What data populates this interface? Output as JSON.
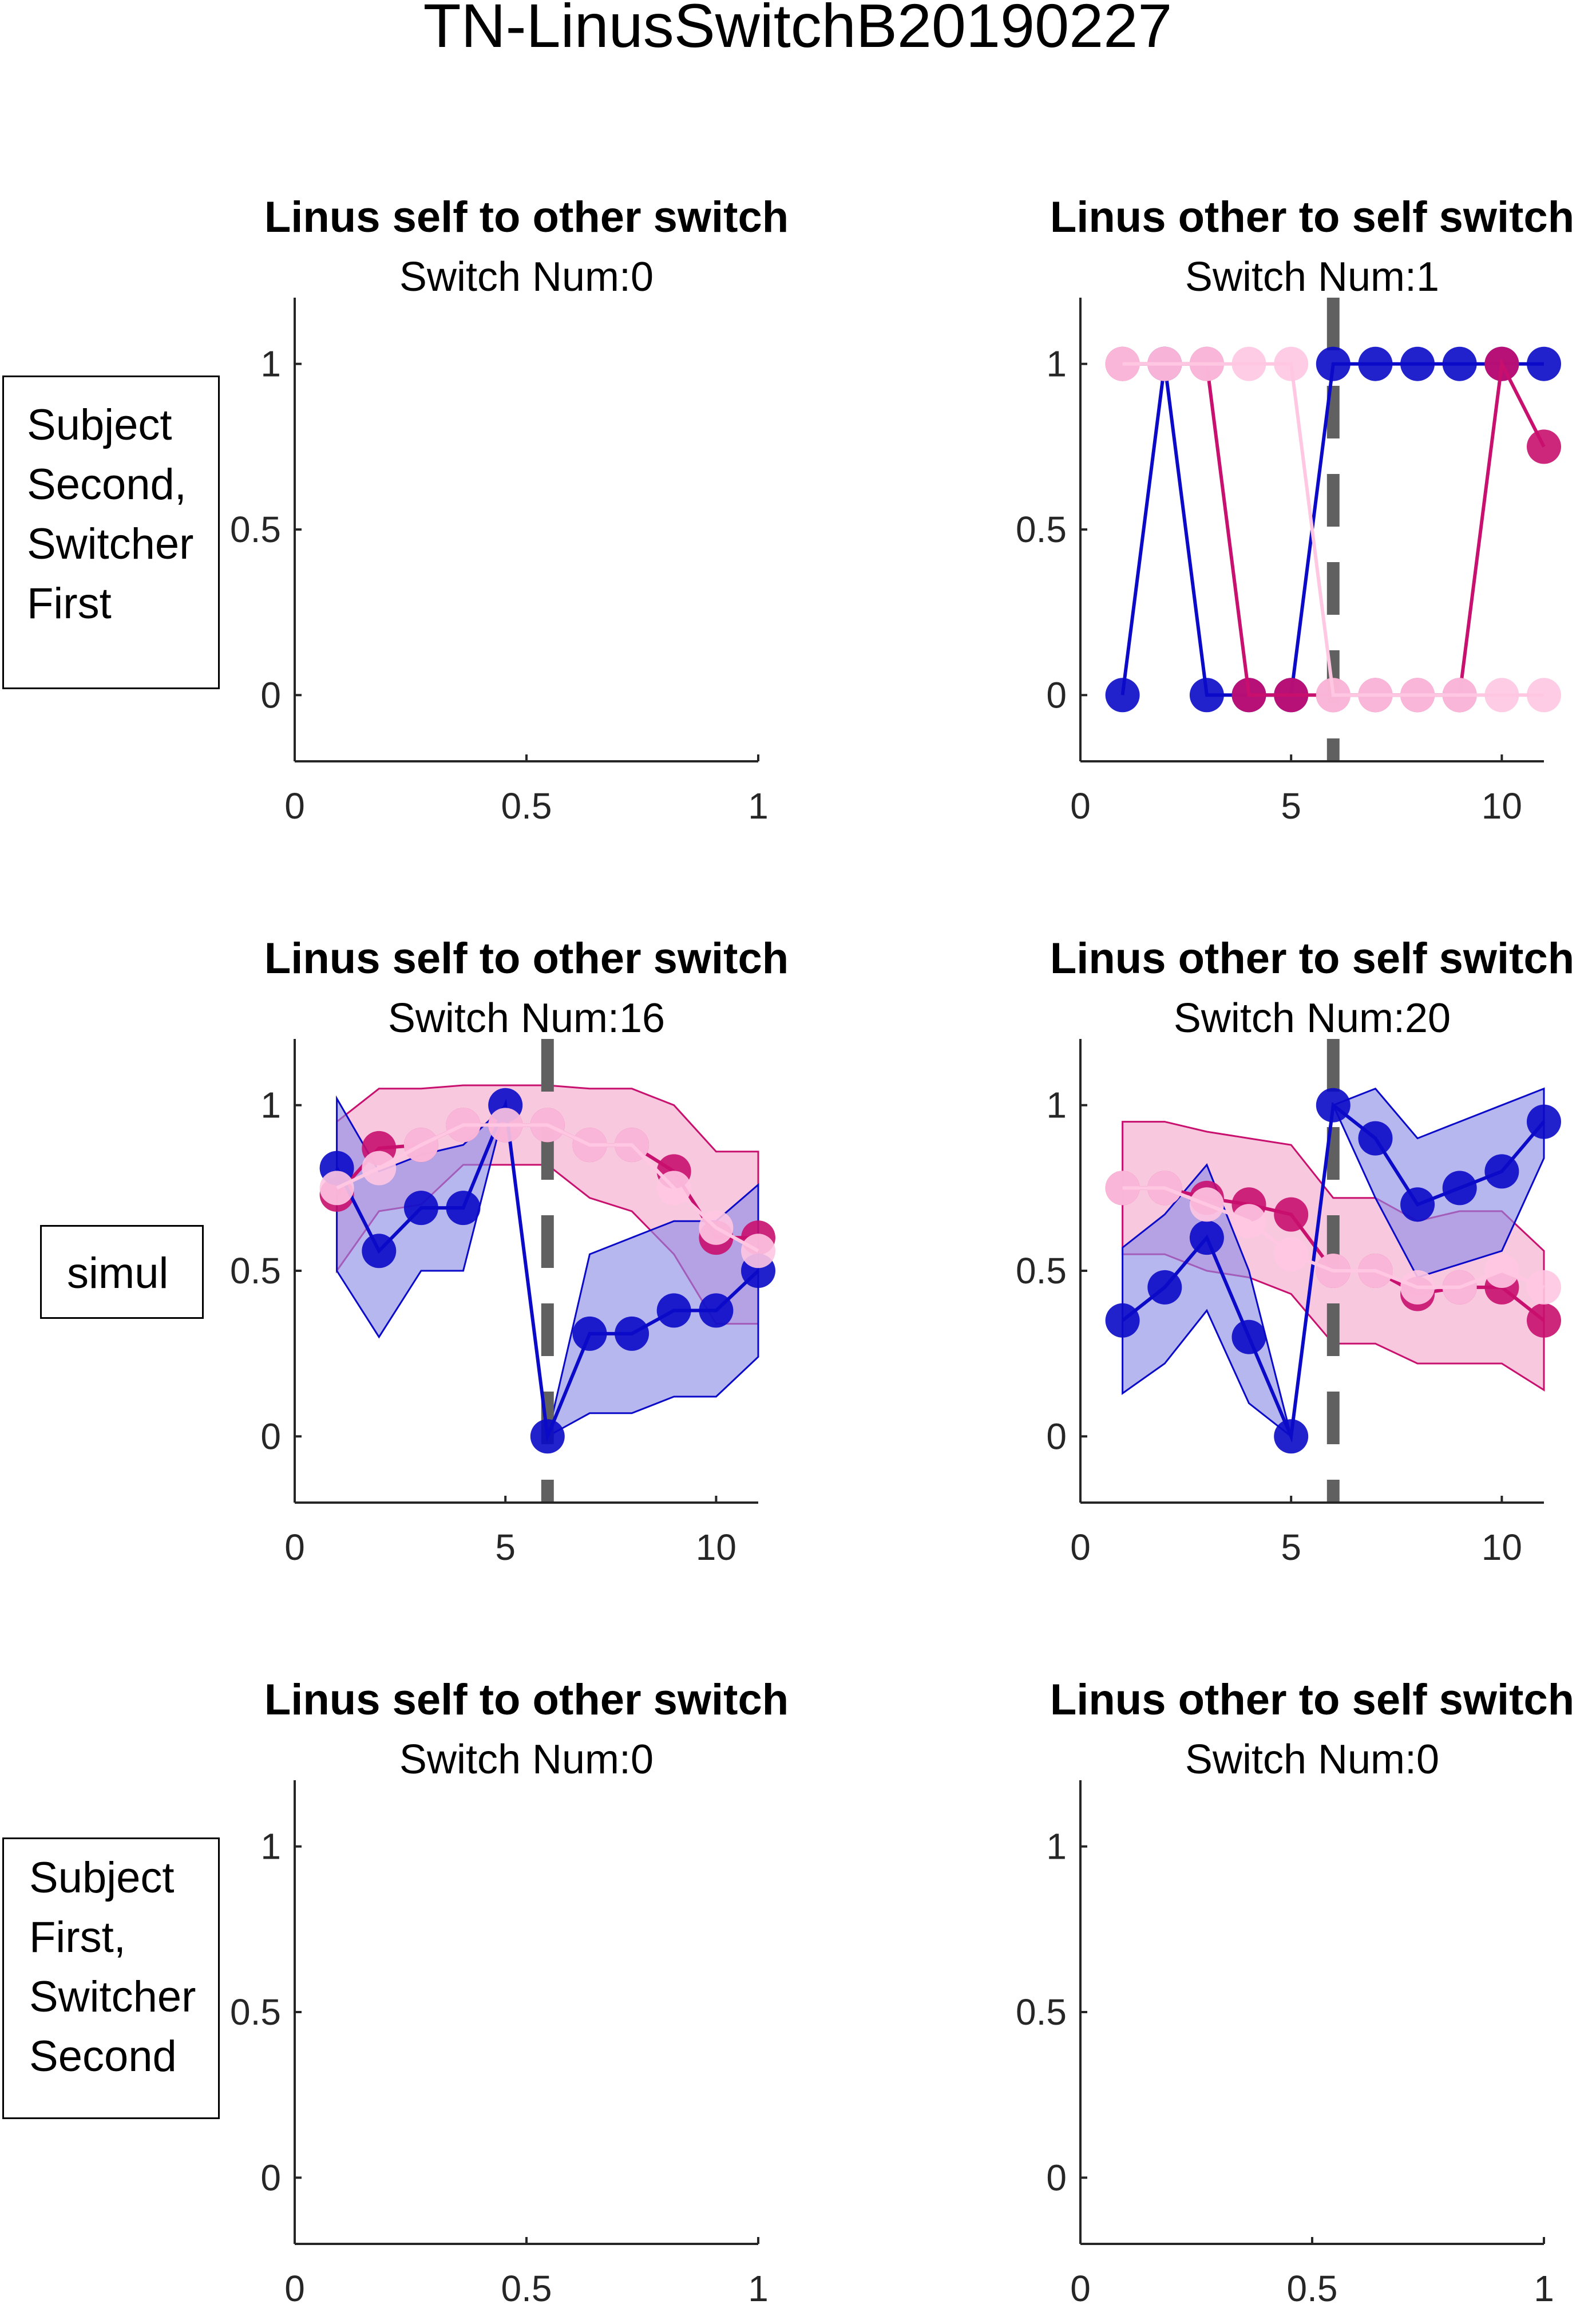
{
  "figure_title": "TN-LinusSwitchB20190227",
  "row_labels": [
    {
      "lines": [
        "Subject",
        "Second,",
        "Switcher",
        "First"
      ]
    },
    {
      "lines": [
        "simul"
      ]
    },
    {
      "lines": [
        "Subject",
        "First,",
        "Switcher",
        "Second"
      ]
    }
  ],
  "colors": {
    "blue": "#0a0ac8",
    "magenta": "#c8106e",
    "pink_mid": "#e0569a",
    "light_pink": "#ffc7e2",
    "purple": "#7a3cc8",
    "blue_band": "#8a8ae6",
    "pink_band": "#f4a6cc",
    "switch_line": "#606060"
  },
  "chart_data": [
    {
      "type": "line",
      "title": "Linus self to other switch",
      "subtitle": "Switch Num:0",
      "xlim": [
        0,
        1
      ],
      "ylim": [
        -0.2,
        1.2
      ],
      "xticks": [
        0,
        0.5,
        1
      ],
      "xticklabels": [
        "0",
        "0.5",
        "1"
      ],
      "yticks": [
        0,
        0.5,
        1
      ],
      "yticklabels": [
        "0",
        "0.5",
        "1"
      ],
      "switch_x": null,
      "series": []
    },
    {
      "type": "line",
      "title": "Linus other to self switch",
      "subtitle": "Switch Num:1",
      "xlim": [
        0,
        11
      ],
      "ylim": [
        -0.2,
        1.2
      ],
      "xticks": [
        0,
        5,
        10
      ],
      "xticklabels": [
        "0",
        "5",
        "10"
      ],
      "yticks": [
        0,
        0.5,
        1
      ],
      "yticklabels": [
        "0",
        "0.5",
        "1"
      ],
      "switch_x": 6,
      "series": [
        {
          "color": "blue",
          "x": [
            1,
            2,
            3,
            4,
            5,
            6,
            7,
            8,
            9,
            10,
            11
          ],
          "y": [
            0,
            1,
            0,
            0,
            0,
            1,
            1,
            1,
            1,
            1,
            1
          ]
        },
        {
          "color": "magenta",
          "x": [
            1,
            2,
            3,
            4,
            5,
            6,
            7,
            8,
            9,
            10,
            11
          ],
          "y": [
            1,
            1,
            1,
            0,
            0,
            0,
            0,
            0,
            0,
            1,
            0.75
          ]
        },
        {
          "color": "light_pink",
          "x": [
            1,
            2,
            3,
            4,
            5,
            6,
            7,
            8,
            9,
            10,
            11
          ],
          "y": [
            1,
            1,
            1,
            1,
            1,
            0,
            0,
            0,
            0,
            0,
            0
          ]
        }
      ]
    },
    {
      "type": "line",
      "title": "Linus self to other switch",
      "subtitle": "Switch Num:16",
      "xlim": [
        0,
        11
      ],
      "ylim": [
        -0.2,
        1.2
      ],
      "xticks": [
        0,
        5,
        10
      ],
      "xticklabels": [
        "0",
        "5",
        "10"
      ],
      "yticks": [
        0,
        0.5,
        1
      ],
      "yticklabels": [
        "0",
        "0.5",
        "1"
      ],
      "switch_x": 6,
      "series": [
        {
          "color": "magenta",
          "band": "pink_band",
          "x": [
            1,
            2,
            3,
            4,
            5,
            6,
            7,
            8,
            9,
            10,
            11
          ],
          "y": [
            0.73,
            0.87,
            0.88,
            0.94,
            0.94,
            0.94,
            0.88,
            0.88,
            0.8,
            0.6,
            0.6
          ],
          "lo": [
            0.5,
            0.68,
            0.7,
            0.82,
            0.82,
            0.82,
            0.72,
            0.68,
            0.55,
            0.34,
            0.34
          ],
          "hi": [
            0.95,
            1.05,
            1.05,
            1.06,
            1.06,
            1.06,
            1.05,
            1.05,
            1.0,
            0.86,
            0.86
          ]
        },
        {
          "color": "blue",
          "band": "blue_band",
          "x": [
            1,
            2,
            3,
            4,
            5,
            6,
            7,
            8,
            9,
            10,
            11
          ],
          "y": [
            0.81,
            0.56,
            0.69,
            0.69,
            1.0,
            0.0,
            0.31,
            0.31,
            0.38,
            0.38,
            0.5
          ],
          "lo": [
            0.5,
            0.3,
            0.5,
            0.5,
            1.0,
            0.0,
            0.07,
            0.07,
            0.12,
            0.12,
            0.24
          ],
          "hi": [
            1.02,
            0.8,
            0.85,
            0.88,
            1.0,
            0.0,
            0.55,
            0.6,
            0.65,
            0.65,
            0.76
          ]
        },
        {
          "color": "light_pink",
          "x": [
            1,
            2,
            3,
            4,
            5,
            6,
            7,
            8,
            9,
            10,
            11
          ],
          "y": [
            0.75,
            0.81,
            0.88,
            0.94,
            0.94,
            0.94,
            0.88,
            0.88,
            0.75,
            0.63,
            0.56
          ]
        }
      ]
    },
    {
      "type": "line",
      "title": "Linus other to self switch",
      "subtitle": "Switch Num:20",
      "xlim": [
        0,
        11
      ],
      "ylim": [
        -0.2,
        1.2
      ],
      "xticks": [
        0,
        5,
        10
      ],
      "xticklabels": [
        "0",
        "5",
        "10"
      ],
      "yticks": [
        0,
        0.5,
        1
      ],
      "yticklabels": [
        "0",
        "0.5",
        "1"
      ],
      "switch_x": 6,
      "series": [
        {
          "color": "magenta",
          "band": "pink_band",
          "x": [
            1,
            2,
            3,
            4,
            5,
            6,
            7,
            8,
            9,
            10,
            11
          ],
          "y": [
            0.75,
            0.75,
            0.72,
            0.7,
            0.67,
            0.5,
            0.5,
            0.43,
            0.45,
            0.45,
            0.35
          ],
          "lo": [
            0.55,
            0.55,
            0.5,
            0.48,
            0.43,
            0.28,
            0.28,
            0.22,
            0.22,
            0.22,
            0.14
          ],
          "hi": [
            0.95,
            0.95,
            0.92,
            0.9,
            0.88,
            0.72,
            0.72,
            0.65,
            0.68,
            0.68,
            0.56
          ]
        },
        {
          "color": "blue",
          "band": "blue_band",
          "x": [
            1,
            2,
            3,
            4,
            5,
            6,
            7,
            8,
            9,
            10,
            11
          ],
          "y": [
            0.35,
            0.45,
            0.6,
            0.3,
            0.0,
            1.0,
            0.9,
            0.7,
            0.75,
            0.8,
            0.95
          ],
          "lo": [
            0.13,
            0.22,
            0.38,
            0.1,
            0.0,
            1.0,
            0.72,
            0.48,
            0.52,
            0.56,
            0.84
          ],
          "hi": [
            0.57,
            0.67,
            0.82,
            0.5,
            0.0,
            1.0,
            1.05,
            0.9,
            0.95,
            1.0,
            1.05
          ]
        },
        {
          "color": "light_pink",
          "x": [
            1,
            2,
            3,
            4,
            5,
            6,
            7,
            8,
            9,
            10,
            11
          ],
          "y": [
            0.75,
            0.75,
            0.7,
            0.65,
            0.55,
            0.5,
            0.5,
            0.45,
            0.45,
            0.5,
            0.45
          ]
        }
      ]
    },
    {
      "type": "line",
      "title": "Linus self to other switch",
      "subtitle": "Switch Num:0",
      "xlim": [
        0,
        1
      ],
      "ylim": [
        -0.2,
        1.2
      ],
      "xticks": [
        0,
        0.5,
        1
      ],
      "xticklabels": [
        "0",
        "0.5",
        "1"
      ],
      "yticks": [
        0,
        0.5,
        1
      ],
      "yticklabels": [
        "0",
        "0.5",
        "1"
      ],
      "switch_x": null,
      "series": []
    },
    {
      "type": "line",
      "title": "Linus other to self switch",
      "subtitle": "Switch Num:0",
      "xlim": [
        0,
        1
      ],
      "ylim": [
        -0.2,
        1.2
      ],
      "xticks": [
        0,
        0.5,
        1
      ],
      "xticklabels": [
        "0",
        "0.5",
        "1"
      ],
      "yticks": [
        0,
        0.5,
        1
      ],
      "yticklabels": [
        "0",
        "0.5",
        "1"
      ],
      "switch_x": null,
      "series": []
    }
  ]
}
